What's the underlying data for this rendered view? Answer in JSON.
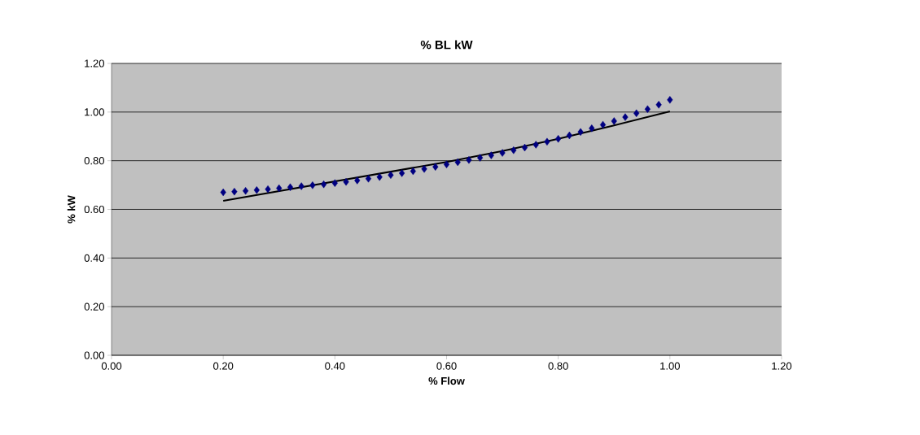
{
  "chart_data": {
    "type": "scatter",
    "title": "% BL kW",
    "xlabel": "% Flow",
    "ylabel": "% kW",
    "series": [
      {
        "color": "#000080",
        "marker": "diamond",
        "x": [
          0.2,
          0.22,
          0.24,
          0.26,
          0.28,
          0.3,
          0.32,
          0.34,
          0.36,
          0.38,
          0.4,
          0.42,
          0.44,
          0.46,
          0.48,
          0.5,
          0.52,
          0.54,
          0.56,
          0.58,
          0.6,
          0.62,
          0.64,
          0.66,
          0.68,
          0.7,
          0.72,
          0.74,
          0.76,
          0.78,
          0.8,
          0.82,
          0.84,
          0.86,
          0.88,
          0.9,
          0.92,
          0.94,
          0.96,
          0.98,
          1.0
        ],
        "values": [
          0.67,
          0.673,
          0.676,
          0.679,
          0.683,
          0.687,
          0.691,
          0.695,
          0.699,
          0.703,
          0.708,
          0.713,
          0.719,
          0.726,
          0.733,
          0.741,
          0.749,
          0.757,
          0.766,
          0.775,
          0.785,
          0.794,
          0.803,
          0.812,
          0.822,
          0.832,
          0.843,
          0.854,
          0.866,
          0.878,
          0.89,
          0.904,
          0.918,
          0.933,
          0.948,
          0.963,
          0.979,
          0.995,
          1.012,
          1.03,
          1.05
        ]
      },
      {
        "type": "line",
        "color": "#000000",
        "marker": "none",
        "x": [
          0.2,
          0.3,
          0.4,
          0.5,
          0.6,
          0.7,
          0.8,
          0.9,
          1.0
        ],
        "values": [
          0.635,
          0.675,
          0.715,
          0.755,
          0.795,
          0.84,
          0.89,
          0.945,
          1.003
        ]
      }
    ],
    "xlim": [
      0,
      1.2
    ],
    "ylim": [
      0,
      1.2
    ],
    "xticks": [
      {
        "value": 0,
        "label": "0.00"
      },
      {
        "value": 0.2,
        "label": "0.20"
      },
      {
        "value": 0.4,
        "label": "0.40"
      },
      {
        "value": 0.6,
        "label": "0.60"
      },
      {
        "value": 0.8,
        "label": "0.80"
      },
      {
        "value": 1.0,
        "label": "1.00"
      },
      {
        "value": 1.2,
        "label": "1.20"
      }
    ],
    "yticks": [
      {
        "value": 0,
        "label": "0.00"
      },
      {
        "value": 0.2,
        "label": "0.20"
      },
      {
        "value": 0.4,
        "label": "0.40"
      },
      {
        "value": 0.6,
        "label": "0.60"
      },
      {
        "value": 0.8,
        "label": "0.80"
      },
      {
        "value": 1.0,
        "label": "1.00"
      },
      {
        "value": 1.2,
        "label": "1.20"
      }
    ],
    "grid": "y"
  }
}
